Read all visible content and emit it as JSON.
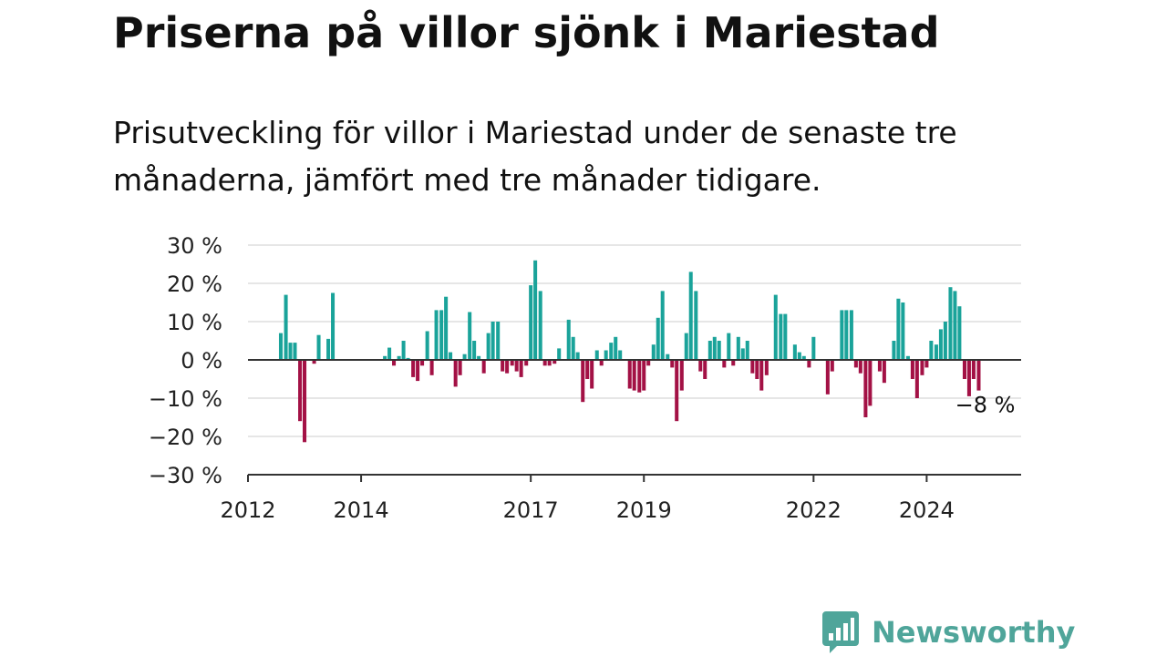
{
  "header": {
    "title": "Priserna på villor sjönk i Mariestad",
    "subtitle": "Prisutveckling för villor i Mariestad under de senaste tre månaderna, jämfört med tre månader tidigare."
  },
  "brand": {
    "name": "Newsworthy",
    "icon": "newsworthy-logo-icon",
    "color": "#4fa59a"
  },
  "colors": {
    "positive": "#1aa39a",
    "negative": "#a31145",
    "zero_line": "#333333",
    "grid": "#dddddd"
  },
  "chart_data": {
    "type": "bar",
    "ylim": [
      -30,
      30
    ],
    "xlim": [
      2012.0,
      2025.67
    ],
    "y_ticks": [
      {
        "value": 30,
        "label": "30 %"
      },
      {
        "value": 20,
        "label": "20 %"
      },
      {
        "value": 10,
        "label": "10 %"
      },
      {
        "value": 0,
        "label": "0 %"
      },
      {
        "value": -10,
        "label": "−10 %"
      },
      {
        "value": -20,
        "label": "−20 %"
      },
      {
        "value": -30,
        "label": "−30 %"
      }
    ],
    "x_ticks": [
      {
        "value": 2012.0,
        "label": "2012"
      },
      {
        "value": 2014.0,
        "label": "2014"
      },
      {
        "value": 2017.0,
        "label": "2017"
      },
      {
        "value": 2019.0,
        "label": "2019"
      },
      {
        "value": 2022.0,
        "label": "2022"
      },
      {
        "value": 2024.0,
        "label": "2024"
      }
    ],
    "grid": true,
    "annotation": {
      "text": "−8 %",
      "x": 2025.0,
      "value": -8
    },
    "points": [
      {
        "x": 2012.58,
        "value": 7
      },
      {
        "x": 2012.67,
        "value": 17
      },
      {
        "x": 2012.75,
        "value": 4.5
      },
      {
        "x": 2012.83,
        "value": 4.5
      },
      {
        "x": 2012.92,
        "value": -16
      },
      {
        "x": 2013.0,
        "value": -21.5
      },
      {
        "x": 2013.08,
        "value": 0
      },
      {
        "x": 2013.17,
        "value": -1
      },
      {
        "x": 2013.25,
        "value": 6.5
      },
      {
        "x": 2013.33,
        "value": 0
      },
      {
        "x": 2013.42,
        "value": 5.5
      },
      {
        "x": 2013.5,
        "value": 17.5
      },
      {
        "x": 2014.42,
        "value": 1
      },
      {
        "x": 2014.5,
        "value": 3.2
      },
      {
        "x": 2014.58,
        "value": -1.5
      },
      {
        "x": 2014.67,
        "value": 1
      },
      {
        "x": 2014.75,
        "value": 5
      },
      {
        "x": 2014.83,
        "value": 0.5
      },
      {
        "x": 2014.92,
        "value": -4.5
      },
      {
        "x": 2015.0,
        "value": -5.5
      },
      {
        "x": 2015.08,
        "value": -1.5
      },
      {
        "x": 2015.17,
        "value": 7.5
      },
      {
        "x": 2015.25,
        "value": -4
      },
      {
        "x": 2015.33,
        "value": 13
      },
      {
        "x": 2015.42,
        "value": 13
      },
      {
        "x": 2015.5,
        "value": 16.5
      },
      {
        "x": 2015.58,
        "value": 2
      },
      {
        "x": 2015.67,
        "value": -7
      },
      {
        "x": 2015.75,
        "value": -4
      },
      {
        "x": 2015.83,
        "value": 1.5
      },
      {
        "x": 2015.92,
        "value": 12.5
      },
      {
        "x": 2016.0,
        "value": 5
      },
      {
        "x": 2016.08,
        "value": 1
      },
      {
        "x": 2016.17,
        "value": -3.5
      },
      {
        "x": 2016.25,
        "value": 7
      },
      {
        "x": 2016.33,
        "value": 10
      },
      {
        "x": 2016.42,
        "value": 10
      },
      {
        "x": 2016.5,
        "value": -3
      },
      {
        "x": 2016.58,
        "value": -3.5
      },
      {
        "x": 2016.67,
        "value": -1.5
      },
      {
        "x": 2016.75,
        "value": -3
      },
      {
        "x": 2016.83,
        "value": -4.5
      },
      {
        "x": 2016.92,
        "value": -1.5
      },
      {
        "x": 2017.0,
        "value": 19.5
      },
      {
        "x": 2017.08,
        "value": 26
      },
      {
        "x": 2017.17,
        "value": 18
      },
      {
        "x": 2017.25,
        "value": -1.5
      },
      {
        "x": 2017.33,
        "value": -1.5
      },
      {
        "x": 2017.42,
        "value": -1
      },
      {
        "x": 2017.5,
        "value": 3
      },
      {
        "x": 2017.58,
        "value": 0
      },
      {
        "x": 2017.67,
        "value": 10.5
      },
      {
        "x": 2017.75,
        "value": 6
      },
      {
        "x": 2017.83,
        "value": 2
      },
      {
        "x": 2017.92,
        "value": -11
      },
      {
        "x": 2018.0,
        "value": -5
      },
      {
        "x": 2018.08,
        "value": -7.5
      },
      {
        "x": 2018.17,
        "value": 2.5
      },
      {
        "x": 2018.25,
        "value": -1.5
      },
      {
        "x": 2018.33,
        "value": 2.5
      },
      {
        "x": 2018.42,
        "value": 4.5
      },
      {
        "x": 2018.5,
        "value": 6
      },
      {
        "x": 2018.58,
        "value": 2.5
      },
      {
        "x": 2018.75,
        "value": -7.5
      },
      {
        "x": 2018.83,
        "value": -8
      },
      {
        "x": 2018.92,
        "value": -8.5
      },
      {
        "x": 2019.0,
        "value": -8
      },
      {
        "x": 2019.08,
        "value": -1.5
      },
      {
        "x": 2019.17,
        "value": 4
      },
      {
        "x": 2019.25,
        "value": 11
      },
      {
        "x": 2019.33,
        "value": 18
      },
      {
        "x": 2019.42,
        "value": 1.5
      },
      {
        "x": 2019.5,
        "value": -2
      },
      {
        "x": 2019.58,
        "value": -16
      },
      {
        "x": 2019.67,
        "value": -8
      },
      {
        "x": 2019.75,
        "value": 7
      },
      {
        "x": 2019.83,
        "value": 23
      },
      {
        "x": 2019.92,
        "value": 18
      },
      {
        "x": 2020.0,
        "value": -3
      },
      {
        "x": 2020.08,
        "value": -5
      },
      {
        "x": 2020.17,
        "value": 5
      },
      {
        "x": 2020.25,
        "value": 6
      },
      {
        "x": 2020.33,
        "value": 5
      },
      {
        "x": 2020.42,
        "value": -2
      },
      {
        "x": 2020.5,
        "value": 7
      },
      {
        "x": 2020.58,
        "value": -1.5
      },
      {
        "x": 2020.67,
        "value": 6
      },
      {
        "x": 2020.75,
        "value": 3
      },
      {
        "x": 2020.83,
        "value": 5
      },
      {
        "x": 2020.92,
        "value": -3.5
      },
      {
        "x": 2021.0,
        "value": -5
      },
      {
        "x": 2021.08,
        "value": -8
      },
      {
        "x": 2021.17,
        "value": -4
      },
      {
        "x": 2021.33,
        "value": 17
      },
      {
        "x": 2021.42,
        "value": 12
      },
      {
        "x": 2021.5,
        "value": 12
      },
      {
        "x": 2021.58,
        "value": 0
      },
      {
        "x": 2021.67,
        "value": 4
      },
      {
        "x": 2021.75,
        "value": 2
      },
      {
        "x": 2021.83,
        "value": 1
      },
      {
        "x": 2021.92,
        "value": -2
      },
      {
        "x": 2022.0,
        "value": 6
      },
      {
        "x": 2022.25,
        "value": -9
      },
      {
        "x": 2022.33,
        "value": -3
      },
      {
        "x": 2022.5,
        "value": 13
      },
      {
        "x": 2022.58,
        "value": 13
      },
      {
        "x": 2022.67,
        "value": 13
      },
      {
        "x": 2022.75,
        "value": -2
      },
      {
        "x": 2022.83,
        "value": -3.5
      },
      {
        "x": 2022.92,
        "value": -15
      },
      {
        "x": 2023.0,
        "value": -12
      },
      {
        "x": 2023.17,
        "value": -3
      },
      {
        "x": 2023.25,
        "value": -6
      },
      {
        "x": 2023.42,
        "value": 5
      },
      {
        "x": 2023.5,
        "value": 16
      },
      {
        "x": 2023.58,
        "value": 15
      },
      {
        "x": 2023.67,
        "value": 1
      },
      {
        "x": 2023.75,
        "value": -5
      },
      {
        "x": 2023.83,
        "value": -10
      },
      {
        "x": 2023.92,
        "value": -4
      },
      {
        "x": 2024.0,
        "value": -2
      },
      {
        "x": 2024.08,
        "value": 5
      },
      {
        "x": 2024.17,
        "value": 4
      },
      {
        "x": 2024.25,
        "value": 8
      },
      {
        "x": 2024.33,
        "value": 10
      },
      {
        "x": 2024.42,
        "value": 19
      },
      {
        "x": 2024.5,
        "value": 18
      },
      {
        "x": 2024.58,
        "value": 14
      },
      {
        "x": 2024.67,
        "value": -5
      },
      {
        "x": 2024.75,
        "value": -9.5
      },
      {
        "x": 2024.83,
        "value": -5
      },
      {
        "x": 2024.92,
        "value": -8
      }
    ]
  }
}
